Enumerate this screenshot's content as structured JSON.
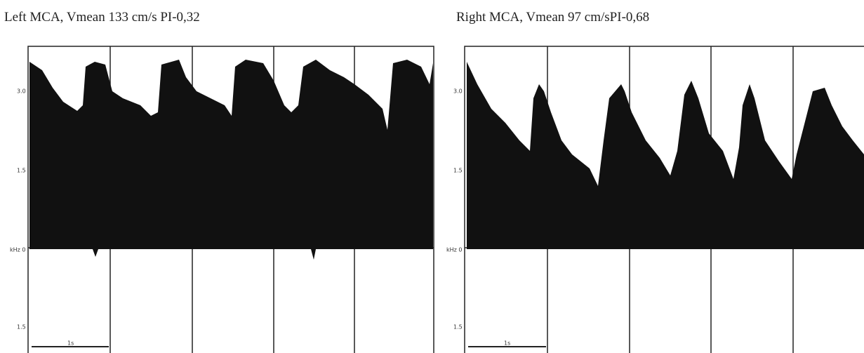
{
  "panels": [
    {
      "title": "Left MCA, Vmean 133 cm/s PI-0,32",
      "labels": [
        "3.0",
        "1.5",
        "kHz 0",
        "1.5"
      ],
      "scale": "1s"
    },
    {
      "title": "Right MCA, Vmean 97 cm/sPI-0,68",
      "labels": [
        "3.0",
        "1.5",
        "kHz 0",
        "1.5"
      ],
      "scale": "1s"
    }
  ]
}
